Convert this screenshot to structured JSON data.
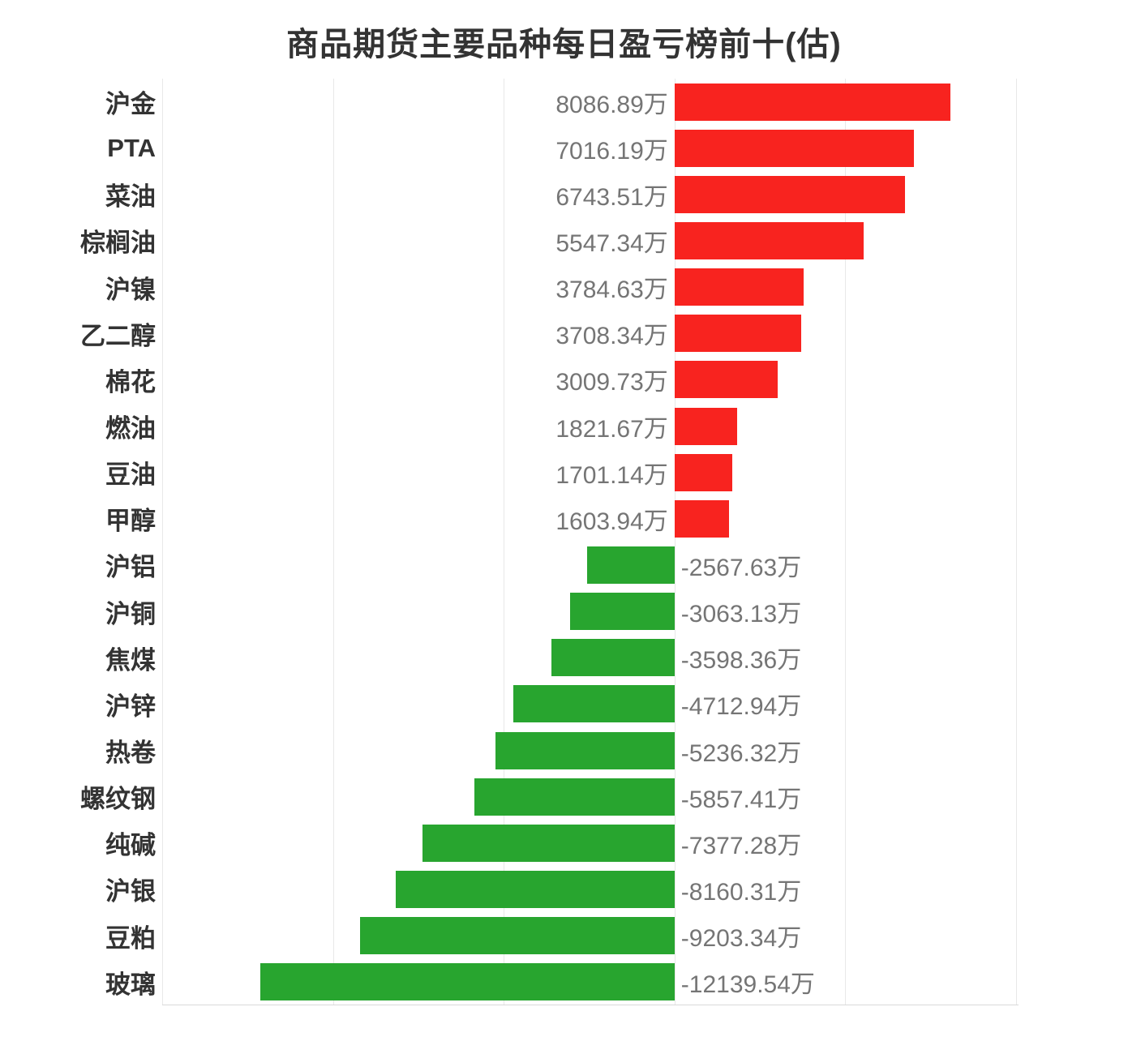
{
  "chart_data": {
    "type": "bar",
    "orientation": "horizontal",
    "title": "商品期货主要品种每日盈亏榜前十(估)",
    "unit": "万",
    "categories": [
      "沪金",
      "PTA",
      "菜油",
      "棕榈油",
      "沪镍",
      "乙二醇",
      "棉花",
      "燃油",
      "豆油",
      "甲醇",
      "沪铝",
      "沪铜",
      "焦煤",
      "沪锌",
      "热卷",
      "螺纹钢",
      "纯碱",
      "沪银",
      "豆粕",
      "玻璃"
    ],
    "values": [
      8086.89,
      7016.19,
      6743.51,
      5547.34,
      3784.63,
      3708.34,
      3009.73,
      1821.67,
      1701.14,
      1603.94,
      -2567.63,
      -3063.13,
      -3598.36,
      -4712.94,
      -5236.32,
      -5857.41,
      -7377.28,
      -8160.31,
      -9203.34,
      -12139.54
    ],
    "value_labels": [
      "8086.89万",
      "7016.19万",
      "6743.51万",
      "5547.34万",
      "3784.63万",
      "3708.34万",
      "3009.73万",
      "1821.67万",
      "1701.14万",
      "1603.94万",
      "-2567.63万",
      "-3063.13万",
      "-3598.36万",
      "-4712.94万",
      "-5236.32万",
      "-5857.41万",
      "-7377.28万",
      "-8160.31万",
      "-9203.34万",
      "-12139.54万"
    ],
    "xlim": [
      -15000,
      10000
    ],
    "grid_step": 5000,
    "grid_on": true,
    "legend": "none",
    "colors": {
      "positive": "#f8231f",
      "negative": "#28a52f",
      "grid": "#e8e8e8",
      "axis": "#d9d9d9",
      "category_text": "#333333",
      "value_text": "#757575",
      "title_text": "#333333",
      "background": "#ffffff"
    }
  }
}
